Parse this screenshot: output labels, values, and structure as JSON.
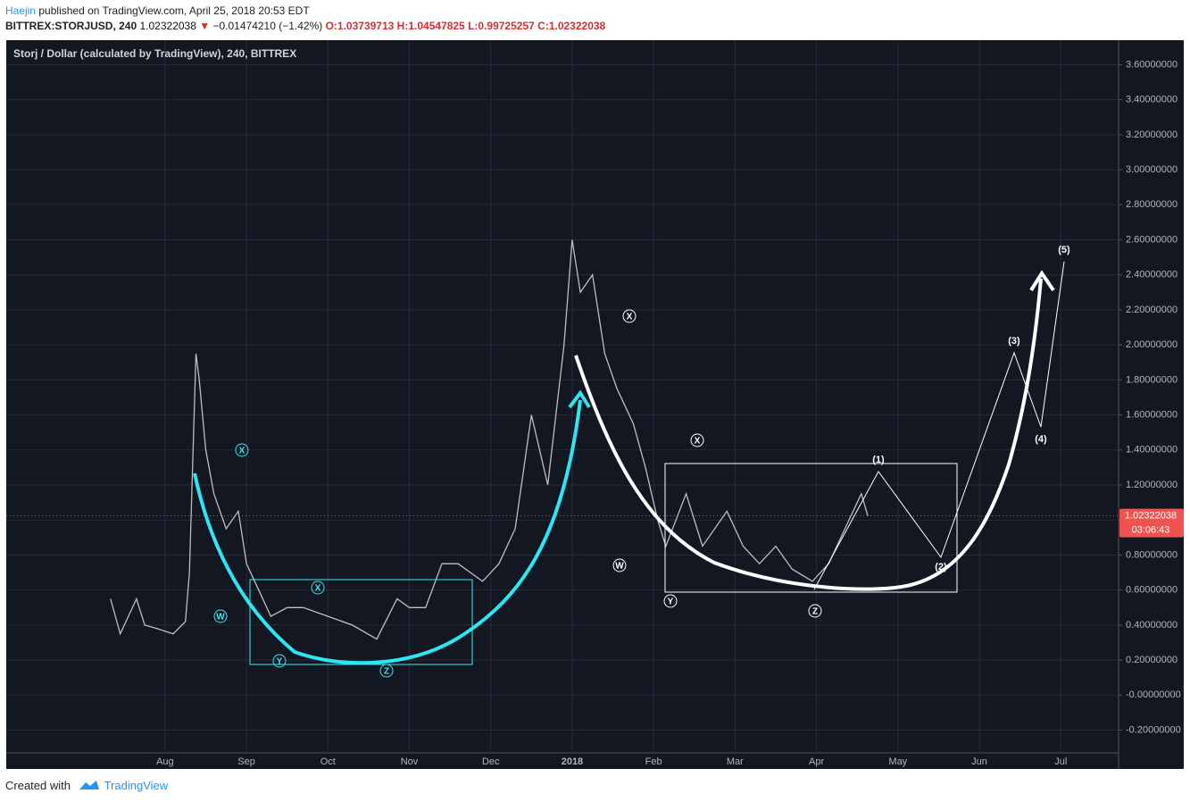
{
  "header": {
    "author": "Haejin",
    "published": "published on TradingView.com, April 25, 2018 20:53 EDT",
    "symbol": "BITTREX:STORJUSD, 240",
    "price": "1.02322038",
    "change": "−0.01474210 (−1.42%)",
    "open": "O:1.03739713",
    "high": "H:1.04547825",
    "low": "L:0.99725257",
    "close": "C:1.02322038"
  },
  "chart_data": {
    "type": "line",
    "title": "Storj / Dollar (calculated by TradingView), 240, BITTREX",
    "color": "#b8c2bf",
    "x": [
      -0.67,
      -0.55,
      -0.45,
      -0.35,
      -0.25,
      -0.1,
      0.1,
      0.25,
      0.3,
      0.38,
      0.42,
      0.5,
      0.6,
      0.75,
      0.9,
      1.0,
      1.15,
      1.3,
      1.5,
      1.7,
      2.0,
      2.3,
      2.6,
      2.85,
      3.0,
      3.2,
      3.4,
      3.6,
      3.9,
      4.1,
      4.3,
      4.5,
      4.7,
      4.9,
      5.0,
      5.1,
      5.25,
      5.4,
      5.55,
      5.75,
      5.9,
      6.05,
      6.15,
      6.4,
      6.6,
      6.9,
      7.1,
      7.3,
      7.5,
      7.7,
      7.95,
      8.15,
      8.35,
      8.55,
      8.63
    ],
    "values": [
      0.55,
      0.35,
      0.45,
      0.55,
      0.4,
      0.38,
      0.35,
      0.42,
      0.7,
      1.95,
      1.8,
      1.4,
      1.15,
      0.95,
      1.05,
      0.75,
      0.6,
      0.45,
      0.5,
      0.5,
      0.45,
      0.4,
      0.32,
      0.55,
      0.5,
      0.5,
      0.75,
      0.75,
      0.65,
      0.75,
      0.95,
      1.6,
      1.2,
      2.0,
      2.6,
      2.3,
      2.4,
      1.95,
      1.75,
      1.55,
      1.3,
      1.0,
      0.85,
      1.15,
      0.85,
      1.05,
      0.85,
      0.75,
      0.85,
      0.72,
      0.65,
      0.75,
      0.95,
      1.15,
      1.02322038
    ],
    "xlim": [
      -1.95,
      11.71
    ],
    "xticks": [
      {
        "value": 0,
        "label": "Aug"
      },
      {
        "value": 1,
        "label": "Sep"
      },
      {
        "value": 2,
        "label": "Oct"
      },
      {
        "value": 3,
        "label": "Nov"
      },
      {
        "value": 4,
        "label": "Dec"
      },
      {
        "value": 5,
        "label": "2018"
      },
      {
        "value": 6,
        "label": "Feb"
      },
      {
        "value": 7,
        "label": "Mar"
      },
      {
        "value": 8,
        "label": "Apr"
      },
      {
        "value": 9,
        "label": "May"
      },
      {
        "value": 10,
        "label": "Jun"
      },
      {
        "value": 11,
        "label": "Jul"
      }
    ],
    "ylim": [
      -0.33,
      3.74
    ],
    "yticks": [
      {
        "value": 3.6,
        "label": "3.60000000"
      },
      {
        "value": 3.4,
        "label": "3.40000000"
      },
      {
        "value": 3.2,
        "label": "3.20000000"
      },
      {
        "value": 3.0,
        "label": "3.00000000"
      },
      {
        "value": 2.8,
        "label": "2.80000000"
      },
      {
        "value": 2.6,
        "label": "2.60000000"
      },
      {
        "value": 2.4,
        "label": "2.40000000"
      },
      {
        "value": 2.2,
        "label": "2.20000000"
      },
      {
        "value": 2.0,
        "label": "2.00000000"
      },
      {
        "value": 1.8,
        "label": "1.80000000"
      },
      {
        "value": 1.6,
        "label": "1.60000000"
      },
      {
        "value": 1.4,
        "label": "1.40000000"
      },
      {
        "value": 1.2,
        "label": "1.20000000"
      },
      {
        "value": 1.0,
        "label": "1.00000000"
      },
      {
        "value": 0.8,
        "label": "0.80000000"
      },
      {
        "value": 0.6,
        "label": "0.60000000"
      },
      {
        "value": 0.4,
        "label": "0.40000000"
      },
      {
        "value": 0.2,
        "label": "0.20000000"
      },
      {
        "value": 0,
        "label": "-0.00000000"
      },
      {
        "value": -0.2,
        "label": "-0.20000000"
      }
    ],
    "grid": true,
    "last_price": 1.02322038,
    "countdown": "03:06:43",
    "annotations": [
      "X",
      "W",
      "X",
      "Y",
      "Z",
      "X",
      "X",
      "W",
      "Y",
      "Z",
      "(1)",
      "(2)",
      "(3)",
      "(4)",
      "(5)"
    ]
  },
  "footer": {
    "created": "Created with",
    "brand": "TradingView"
  }
}
